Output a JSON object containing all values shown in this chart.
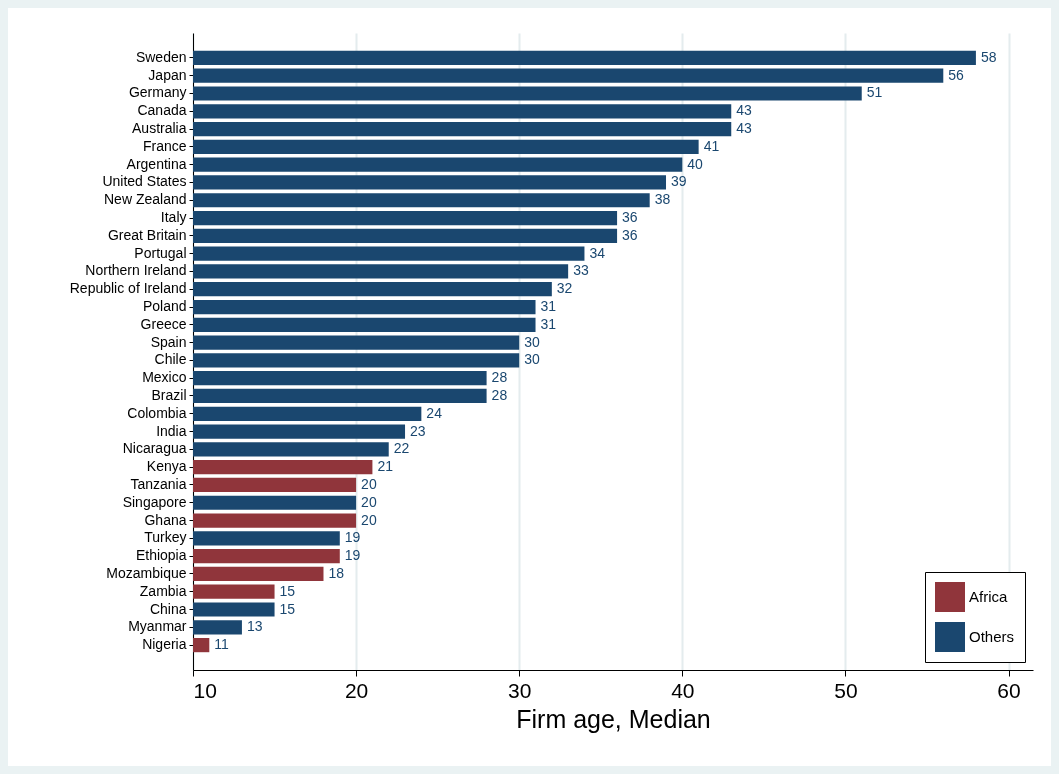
{
  "chart_data": {
    "type": "bar",
    "orientation": "horizontal",
    "xlabel": "Firm age, Median",
    "categories": [
      "Sweden",
      "Japan",
      "Germany",
      "Canada",
      "Australia",
      "France",
      "Argentina",
      "United States",
      "New Zealand",
      "Italy",
      "Great Britain",
      "Portugal",
      "Northern Ireland",
      "Republic of Ireland",
      "Poland",
      "Greece",
      "Spain",
      "Chile",
      "Mexico",
      "Brazil",
      "Colombia",
      "India",
      "Nicaragua",
      "Kenya",
      "Tanzania",
      "Singapore",
      "Ghana",
      "Turkey",
      "Ethiopia",
      "Mozambique",
      "Zambia",
      "China",
      "Myanmar",
      "Nigeria"
    ],
    "series": [
      {
        "name": "Africa",
        "color": "#90353b",
        "values": [
          null,
          null,
          null,
          null,
          null,
          null,
          null,
          null,
          null,
          null,
          null,
          null,
          null,
          null,
          null,
          null,
          null,
          null,
          null,
          null,
          null,
          null,
          null,
          21,
          20,
          null,
          20,
          null,
          19,
          18,
          15,
          null,
          null,
          11
        ]
      },
      {
        "name": "Others",
        "color": "#1a476f",
        "values": [
          58,
          56,
          51,
          43,
          43,
          41,
          40,
          39,
          38,
          36,
          36,
          34,
          33,
          32,
          31,
          31,
          30,
          30,
          28,
          28,
          24,
          23,
          22,
          null,
          null,
          20,
          null,
          19,
          null,
          null,
          null,
          15,
          13,
          null
        ]
      }
    ],
    "xlim": [
      10,
      61.5
    ],
    "xticks": [
      10,
      20,
      30,
      40,
      50,
      60
    ],
    "grid": "x",
    "legend": "bottom right",
    "data_labels": true
  }
}
